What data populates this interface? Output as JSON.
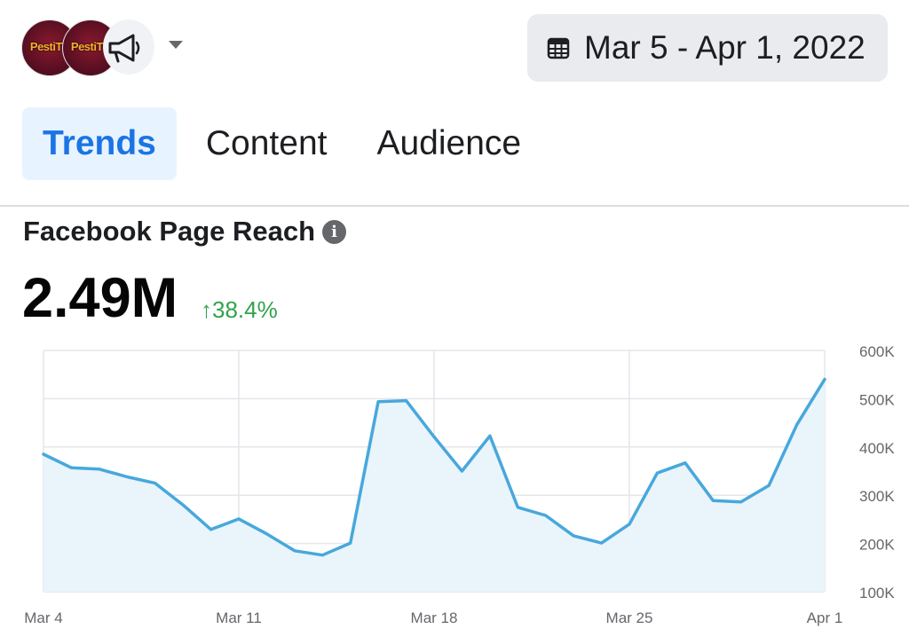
{
  "header": {
    "page_avatars": [
      {
        "name": "page-avatar-1",
        "logo_text": "PestiTV"
      },
      {
        "name": "page-avatar-2",
        "logo_text": "PestiTV"
      }
    ],
    "date_range": "Mar 5 - Apr 1, 2022"
  },
  "tabs": [
    {
      "label": "Trends",
      "active": true
    },
    {
      "label": "Content",
      "active": false
    },
    {
      "label": "Audience",
      "active": false
    }
  ],
  "section": {
    "title": "Facebook Page Reach",
    "metric_value": "2.49M",
    "metric_delta": "↑38.4%"
  },
  "colors": {
    "accent": "#1b74e4",
    "positive": "#31a24c",
    "line": "#47a8dc",
    "fill": "#eaf4fb"
  },
  "chart_data": {
    "type": "area",
    "x_tick_labels": [
      "Mar 4",
      "Mar 11",
      "Mar 18",
      "Mar 25",
      "Apr 1"
    ],
    "y_tick_labels": [
      "100K",
      "200K",
      "300K",
      "400K",
      "500K",
      "600K"
    ],
    "ylim": [
      100000,
      600000
    ],
    "y_axis_position": "right",
    "grid": true,
    "series": [
      {
        "x": [
          "Mar 4",
          "Mar 5",
          "Mar 6",
          "Mar 7",
          "Mar 8",
          "Mar 9",
          "Mar 10",
          "Mar 11",
          "Mar 12",
          "Mar 13",
          "Mar 14",
          "Mar 15",
          "Mar 16",
          "Mar 17",
          "Mar 18",
          "Mar 19",
          "Mar 20",
          "Mar 21",
          "Mar 22",
          "Mar 23",
          "Mar 24",
          "Mar 25",
          "Mar 26",
          "Mar 27",
          "Mar 28",
          "Mar 29",
          "Mar 30",
          "Mar 31",
          "Apr 1"
        ],
        "values": [
          385000,
          357000,
          354000,
          338000,
          325000,
          280000,
          229000,
          251000,
          220000,
          185000,
          176000,
          201000,
          494000,
          496000,
          421000,
          350000,
          423000,
          275000,
          258000,
          216000,
          201000,
          240000,
          346000,
          367000,
          289000,
          286000,
          320000,
          446000,
          540000
        ]
      }
    ]
  }
}
